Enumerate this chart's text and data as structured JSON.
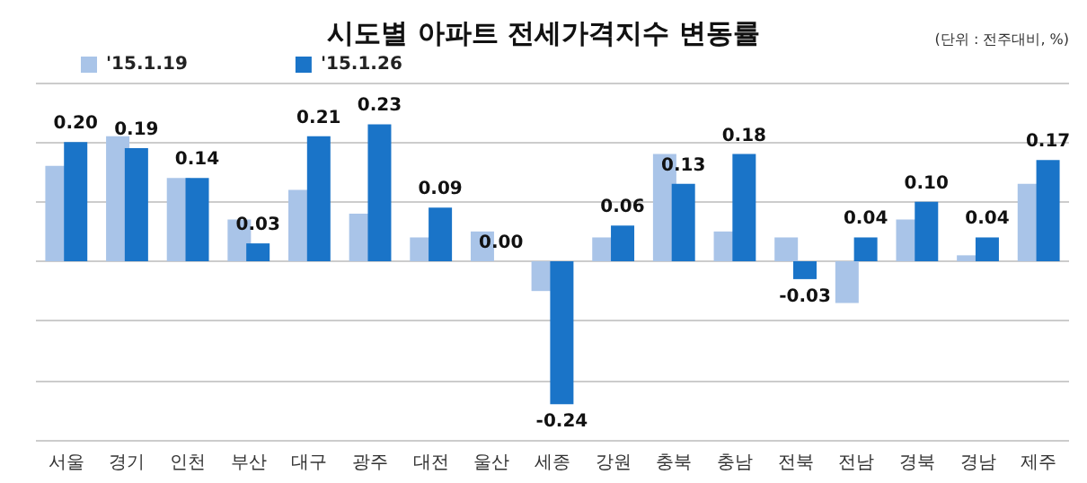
{
  "chart_data": {
    "type": "bar",
    "title": "시도별 아파트 전세가격지수 변동률",
    "annotations": [
      "(단위 : 전주대비, %)"
    ],
    "categories": [
      "서울",
      "경기",
      "인천",
      "부산",
      "대구",
      "광주",
      "대전",
      "울산",
      "세종",
      "강원",
      "충북",
      "충남",
      "전북",
      "전남",
      "경북",
      "경남",
      "제주"
    ],
    "series": [
      {
        "name": "'15.1.19",
        "color": "#a9c4e8",
        "values": [
          0.16,
          0.21,
          0.14,
          0.07,
          0.12,
          0.08,
          0.04,
          0.05,
          -0.05,
          0.04,
          0.18,
          0.05,
          0.04,
          -0.07,
          0.07,
          0.01,
          0.13
        ]
      },
      {
        "name": "'15.1.26",
        "color": "#1a74c8",
        "values": [
          0.2,
          0.19,
          0.14,
          0.03,
          0.21,
          0.23,
          0.09,
          0.0,
          -0.24,
          0.06,
          0.13,
          0.18,
          -0.03,
          0.04,
          0.1,
          0.04,
          0.17
        ],
        "value_labels": [
          "0.20",
          "0.19",
          "0.14",
          "0.03",
          "0.21",
          "0.23",
          "0.09",
          "0.00",
          "-0.24",
          "0.06",
          "0.13",
          "0.18",
          "-0.03",
          "0.04",
          "0.10",
          "0.04",
          "0.17"
        ]
      }
    ],
    "ylim": [
      -0.3,
      0.3
    ],
    "yticks": [
      {
        "value": -0.3,
        "label": null
      },
      {
        "value": -0.2,
        "label": null
      },
      {
        "value": -0.1,
        "label": null
      },
      {
        "value": 0,
        "label": null
      },
      {
        "value": 0.1,
        "label": null
      },
      {
        "value": 0.2,
        "label": null
      },
      {
        "value": 0.3,
        "label": null
      }
    ],
    "tick_labels": "x",
    "grid": "y",
    "legend": "top left"
  }
}
